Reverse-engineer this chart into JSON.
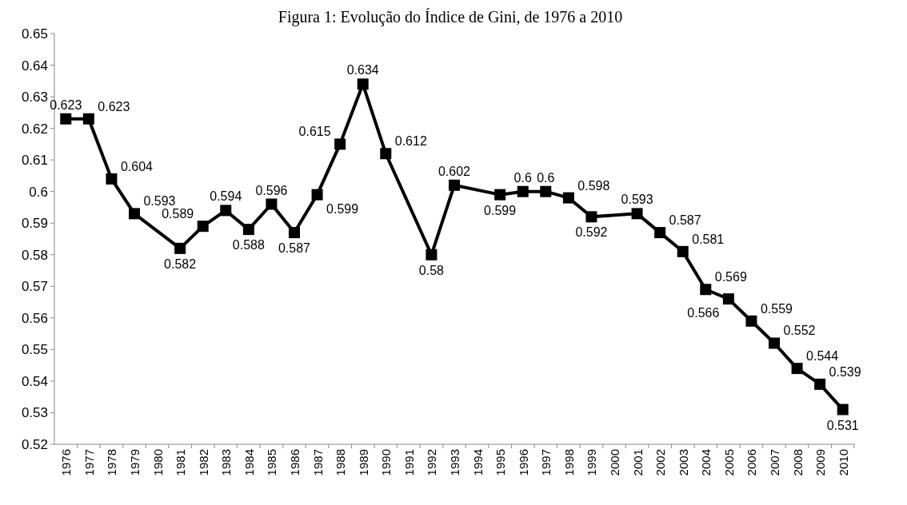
{
  "chart_data": {
    "type": "line",
    "title": "Figura 1: Evolução do Índice de Gini, de 1976 a 2010",
    "categories": [
      "1976",
      "1977",
      "1978",
      "1979",
      "1980",
      "1981",
      "1982",
      "1983",
      "1984",
      "1985",
      "1986",
      "1987",
      "1988",
      "1989",
      "1990",
      "1991",
      "1992",
      "1993",
      "1994",
      "1995",
      "1996",
      "1997",
      "1998",
      "1999",
      "2000",
      "2001",
      "2002",
      "2003",
      "2004",
      "2005",
      "2006",
      "2007",
      "2008",
      "2009",
      "2010"
    ],
    "series": [
      {
        "color": "#000000",
        "values": [
          0.623,
          0.623,
          0.604,
          0.593,
          null,
          0.582,
          0.589,
          0.594,
          0.588,
          0.596,
          0.587,
          0.599,
          0.615,
          0.634,
          0.612,
          null,
          0.58,
          0.602,
          null,
          0.599,
          0.6,
          0.6,
          0.598,
          0.592,
          null,
          0.593,
          0.587,
          0.581,
          0.569,
          0.566,
          0.559,
          0.552,
          0.544,
          0.539,
          0.531
        ]
      }
    ],
    "ylim": [
      0.52,
      0.65
    ],
    "yticks": [
      0.52,
      0.53,
      0.54,
      0.55,
      0.56,
      0.57,
      0.58,
      0.59,
      0.6,
      0.61,
      0.62,
      0.63,
      0.64,
      0.65
    ],
    "marker": "square",
    "line_style": "solid",
    "data_labels": true,
    "grid": false
  }
}
